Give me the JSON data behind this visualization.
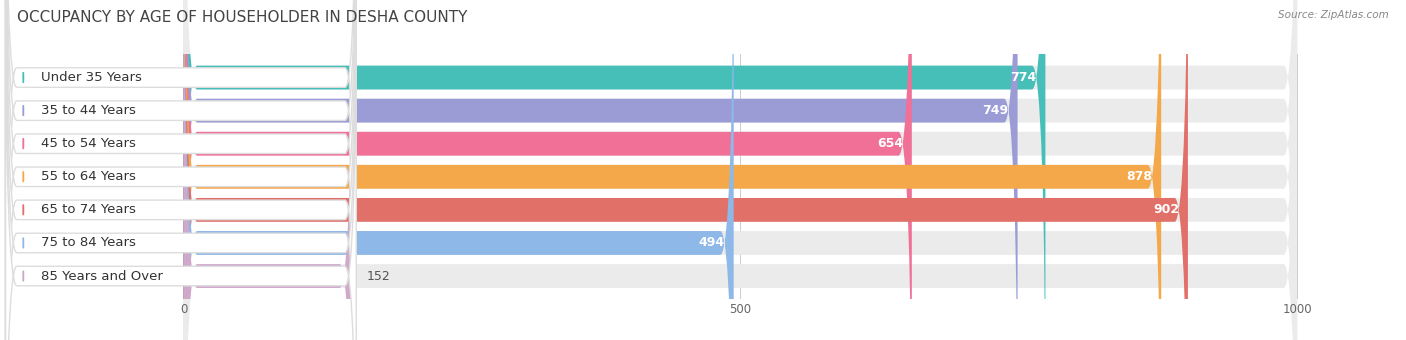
{
  "title": "OCCUPANCY BY AGE OF HOUSEHOLDER IN DESHA COUNTY",
  "source": "Source: ZipAtlas.com",
  "categories": [
    "Under 35 Years",
    "35 to 44 Years",
    "45 to 54 Years",
    "55 to 64 Years",
    "65 to 74 Years",
    "75 to 84 Years",
    "85 Years and Over"
  ],
  "values": [
    774,
    749,
    654,
    878,
    902,
    494,
    152
  ],
  "bar_colors": [
    "#45bfb8",
    "#9b9cd6",
    "#f07097",
    "#f5a84a",
    "#e07068",
    "#8db8e8",
    "#cfa8cc"
  ],
  "bar_bg_color": "#ebebeb",
  "xlim_data": [
    0,
    1000
  ],
  "xticks": [
    0,
    500,
    1000
  ],
  "title_fontsize": 11,
  "label_fontsize": 9.5,
  "value_fontsize": 9,
  "background_color": "#ffffff",
  "bar_height": 0.72,
  "figsize": [
    14.06,
    3.4
  ]
}
